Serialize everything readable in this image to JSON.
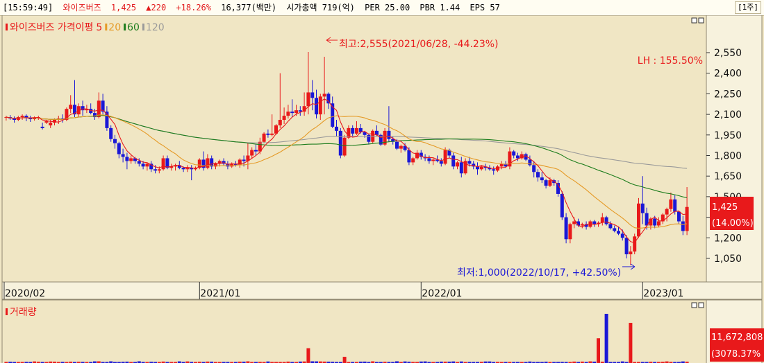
{
  "header": {
    "time": "[15:59:49]",
    "name": "와이즈버즈",
    "price": "1,425",
    "change": "▲220",
    "change_pct": "+18.26%",
    "volume_info": "16,377(백만)",
    "market_cap": "시가총액 719(억)",
    "per": "PER 25.00",
    "pbr": "PBR 1.44",
    "eps": "EPS 57",
    "period_button": "[1주]"
  },
  "colors": {
    "up": "#e8191b",
    "down": "#1a17d6",
    "ma5": "#e8191b",
    "ma20": "#e59a26",
    "ma60": "#1d7d1d",
    "ma120": "#9a9a9a",
    "background": "#f0e6c4"
  },
  "price_panel": {
    "legend_title": "와이즈버즈 가격이평",
    "legend_ma": [
      "5",
      "20",
      "60",
      "120"
    ],
    "high_note": "최고:2,555(2021/06/28, -44.23%)",
    "low_note": "최저:1,000(2022/10/17, +42.50%)",
    "lh_label": "LH : 155.50%",
    "current_price": "1,425",
    "current_pct": "(14.00%)"
  },
  "volume_panel": {
    "legend": "거래량",
    "current_volume": "11,672,808",
    "current_pct": "(3078.37%"
  },
  "chart_data": [
    {
      "type": "candlestick",
      "title": "와이즈버즈 가격이평",
      "period": "weekly",
      "y_ticks": [
        1050,
        1200,
        1350,
        1500,
        1650,
        1800,
        1950,
        2100,
        2250,
        2400,
        2550
      ],
      "y_tick_labels": [
        "1,050",
        "1,200",
        "1,350",
        "1,500",
        "1,650",
        "1,800",
        "1,950",
        "2,100",
        "2,250",
        "2,400",
        "2,550"
      ],
      "ylim": [
        912,
        2680
      ],
      "x_labels": [
        {
          "label": "2020/02",
          "index": 0
        },
        {
          "label": "2021/01",
          "index": 48
        },
        {
          "label": "2022/01",
          "index": 103
        },
        {
          "label": "2023/01",
          "index": 158
        }
      ],
      "candles": [
        [
          2075,
          2090,
          2055,
          2080
        ],
        [
          2080,
          2095,
          2060,
          2070
        ],
        [
          2070,
          2085,
          2040,
          2060
        ],
        [
          2060,
          2090,
          2050,
          2080
        ],
        [
          2080,
          2100,
          2060,
          2090
        ],
        [
          2090,
          2100,
          2050,
          2075
        ],
        [
          2075,
          2090,
          2045,
          2065
        ],
        [
          2065,
          2085,
          2055,
          2075
        ],
        [
          2075,
          2090,
          2060,
          2080
        ],
        [
          2010,
          2040,
          1990,
          2000
        ],
        [
          2040,
          2060,
          2030,
          2050
        ],
        [
          2020,
          2060,
          2000,
          2040
        ],
        [
          2040,
          2070,
          2020,
          2060
        ],
        [
          2060,
          2090,
          2030,
          2070
        ],
        [
          2070,
          2100,
          2040,
          2060
        ],
        [
          2060,
          2150,
          2050,
          2140
        ],
        [
          2140,
          2240,
          2110,
          2170
        ],
        [
          2170,
          2350,
          2080,
          2100
        ],
        [
          2100,
          2180,
          2080,
          2160
        ],
        [
          2160,
          2200,
          2090,
          2130
        ],
        [
          2130,
          2170,
          2110,
          2140
        ],
        [
          2140,
          2180,
          2100,
          2110
        ],
        [
          2110,
          2140,
          2060,
          2080
        ],
        [
          2080,
          2260,
          2070,
          2200
        ],
        [
          2200,
          2250,
          2100,
          2120
        ],
        [
          2120,
          2160,
          1980,
          2000
        ],
        [
          2000,
          2020,
          1900,
          1920
        ],
        [
          1920,
          1950,
          1850,
          1890
        ],
        [
          1890,
          1900,
          1780,
          1810
        ],
        [
          1810,
          1850,
          1750,
          1790
        ],
        [
          1790,
          1820,
          1700,
          1760
        ],
        [
          1760,
          1800,
          1740,
          1780
        ],
        [
          1780,
          1790,
          1740,
          1760
        ],
        [
          1760,
          1780,
          1720,
          1740
        ],
        [
          1740,
          1760,
          1700,
          1720
        ],
        [
          1720,
          1750,
          1690,
          1740
        ],
        [
          1740,
          1760,
          1680,
          1700
        ],
        [
          1700,
          1730,
          1670,
          1690
        ],
        [
          1690,
          1720,
          1670,
          1700
        ],
        [
          1700,
          1800,
          1690,
          1780
        ],
        [
          1780,
          1800,
          1700,
          1710
        ],
        [
          1710,
          1740,
          1690,
          1720
        ],
        [
          1720,
          1740,
          1690,
          1730
        ],
        [
          1730,
          1760,
          1700,
          1710
        ],
        [
          1710,
          1720,
          1680,
          1700
        ],
        [
          1700,
          1730,
          1680,
          1710
        ],
        [
          1710,
          1730,
          1620,
          1700
        ],
        [
          1700,
          1720,
          1690,
          1710
        ],
        [
          1710,
          1780,
          1700,
          1770
        ],
        [
          1770,
          1830,
          1690,
          1710
        ],
        [
          1710,
          1810,
          1700,
          1780
        ],
        [
          1780,
          1800,
          1700,
          1720
        ],
        [
          1720,
          1750,
          1700,
          1740
        ],
        [
          1740,
          1770,
          1720,
          1760
        ],
        [
          1760,
          1780,
          1730,
          1740
        ],
        [
          1740,
          1760,
          1700,
          1720
        ],
        [
          1720,
          1750,
          1710,
          1740
        ],
        [
          1740,
          1760,
          1720,
          1730
        ],
        [
          1730,
          1780,
          1710,
          1770
        ],
        [
          1770,
          1800,
          1720,
          1760
        ],
        [
          1760,
          1890,
          1700,
          1800
        ],
        [
          1800,
          1860,
          1780,
          1840
        ],
        [
          1840,
          1880,
          1800,
          1830
        ],
        [
          1830,
          1930,
          1810,
          1900
        ],
        [
          1900,
          1970,
          1890,
          1960
        ],
        [
          1960,
          1990,
          1930,
          1950
        ],
        [
          1950,
          2100,
          1940,
          1960
        ],
        [
          1960,
          2030,
          1950,
          2020
        ],
        [
          2020,
          2400,
          2000,
          2060
        ],
        [
          2060,
          2150,
          2030,
          2090
        ],
        [
          2090,
          2170,
          2070,
          2120
        ],
        [
          2120,
          2210,
          2080,
          2110
        ],
        [
          2110,
          2170,
          2090,
          2130
        ],
        [
          2130,
          2160,
          2090,
          2120
        ],
        [
          2120,
          2260,
          2090,
          2160
        ],
        [
          2160,
          2555,
          2100,
          2260
        ],
        [
          2260,
          2350,
          2130,
          2220
        ],
        [
          2220,
          2280,
          2070,
          2100
        ],
        [
          2100,
          2250,
          2060,
          2230
        ],
        [
          2230,
          2520,
          2100,
          2250
        ],
        [
          2250,
          2260,
          2140,
          2180
        ],
        [
          2180,
          2230,
          2000,
          2010
        ],
        [
          2010,
          2060,
          1940,
          1980
        ],
        [
          1980,
          2000,
          1780,
          1800
        ],
        [
          1800,
          1950,
          1790,
          1930
        ],
        [
          1930,
          2020,
          1920,
          2000
        ],
        [
          2000,
          2020,
          1940,
          1960
        ],
        [
          1960,
          2050,
          1950,
          2000
        ],
        [
          2000,
          2030,
          1960,
          1970
        ],
        [
          1970,
          1980,
          1930,
          1950
        ],
        [
          1950,
          1960,
          1880,
          1900
        ],
        [
          1900,
          1990,
          1890,
          1980
        ],
        [
          1980,
          2020,
          1940,
          1950
        ],
        [
          1950,
          1960,
          1870,
          1880
        ],
        [
          1880,
          2000,
          1870,
          1980
        ],
        [
          1980,
          2160,
          1900,
          1920
        ],
        [
          1920,
          1940,
          1880,
          1900
        ],
        [
          1900,
          1920,
          1840,
          1850
        ],
        [
          1850,
          1880,
          1820,
          1870
        ],
        [
          1870,
          1890,
          1830,
          1840
        ],
        [
          1840,
          1860,
          1730,
          1750
        ],
        [
          1750,
          1790,
          1730,
          1780
        ],
        [
          1780,
          1840,
          1770,
          1820
        ],
        [
          1820,
          1840,
          1770,
          1790
        ],
        [
          1790,
          1810,
          1760,
          1780
        ],
        [
          1780,
          1800,
          1740,
          1760
        ],
        [
          1760,
          1780,
          1730,
          1770
        ],
        [
          1770,
          1800,
          1750,
          1760
        ],
        [
          1760,
          1780,
          1720,
          1740
        ],
        [
          1740,
          1860,
          1730,
          1840
        ],
        [
          1840,
          1850,
          1780,
          1800
        ],
        [
          1800,
          1820,
          1700,
          1720
        ],
        [
          1720,
          1760,
          1700,
          1750
        ],
        [
          1750,
          1790,
          1640,
          1670
        ],
        [
          1670,
          1780,
          1660,
          1760
        ],
        [
          1760,
          1790,
          1720,
          1740
        ],
        [
          1740,
          1760,
          1700,
          1720
        ],
        [
          1720,
          1750,
          1660,
          1700
        ],
        [
          1700,
          1730,
          1690,
          1720
        ],
        [
          1720,
          1740,
          1690,
          1710
        ],
        [
          1710,
          1730,
          1690,
          1700
        ],
        [
          1700,
          1720,
          1660,
          1690
        ],
        [
          1690,
          1730,
          1680,
          1720
        ],
        [
          1720,
          1760,
          1700,
          1740
        ],
        [
          1740,
          1760,
          1710,
          1720
        ],
        [
          1720,
          1860,
          1700,
          1830
        ],
        [
          1830,
          1840,
          1780,
          1800
        ],
        [
          1800,
          1820,
          1760,
          1780
        ],
        [
          1780,
          1830,
          1770,
          1810
        ],
        [
          1810,
          1820,
          1760,
          1770
        ],
        [
          1770,
          1800,
          1720,
          1730
        ],
        [
          1730,
          1760,
          1640,
          1680
        ],
        [
          1680,
          1700,
          1610,
          1640
        ],
        [
          1640,
          1680,
          1600,
          1620
        ],
        [
          1620,
          1630,
          1560,
          1580
        ],
        [
          1580,
          1640,
          1570,
          1620
        ],
        [
          1620,
          1630,
          1580,
          1600
        ],
        [
          1600,
          1620,
          1500,
          1520
        ],
        [
          1520,
          1540,
          1330,
          1350
        ],
        [
          1350,
          1380,
          1160,
          1190
        ],
        [
          1190,
          1310,
          1160,
          1300
        ],
        [
          1300,
          1350,
          1270,
          1320
        ],
        [
          1320,
          1340,
          1280,
          1290
        ],
        [
          1290,
          1310,
          1270,
          1300
        ],
        [
          1300,
          1320,
          1260,
          1280
        ],
        [
          1280,
          1330,
          1270,
          1320
        ],
        [
          1320,
          1330,
          1280,
          1300
        ],
        [
          1300,
          1320,
          1280,
          1310
        ],
        [
          1310,
          1380,
          1290,
          1350
        ],
        [
          1350,
          1360,
          1290,
          1300
        ],
        [
          1300,
          1320,
          1260,
          1270
        ],
        [
          1270,
          1290,
          1240,
          1250
        ],
        [
          1250,
          1280,
          1220,
          1230
        ],
        [
          1230,
          1260,
          1180,
          1200
        ],
        [
          1200,
          1220,
          1050,
          1080
        ],
        [
          1080,
          1140,
          1000,
          1100
        ],
        [
          1100,
          1230,
          1080,
          1210
        ],
        [
          1210,
          1490,
          1200,
          1450
        ],
        [
          1450,
          1650,
          1300,
          1380
        ],
        [
          1380,
          1420,
          1260,
          1290
        ],
        [
          1290,
          1350,
          1260,
          1340
        ],
        [
          1340,
          1360,
          1270,
          1290
        ],
        [
          1290,
          1350,
          1280,
          1320
        ],
        [
          1320,
          1380,
          1300,
          1370
        ],
        [
          1370,
          1420,
          1320,
          1410
        ],
        [
          1410,
          1530,
          1390,
          1480
        ],
        [
          1480,
          1510,
          1370,
          1390
        ],
        [
          1390,
          1400,
          1300,
          1320
        ],
        [
          1320,
          1360,
          1220,
          1250
        ],
        [
          1250,
          1570,
          1220,
          1425
        ]
      ]
    },
    {
      "type": "bar",
      "title": "거래량",
      "current_volume": 11672808,
      "visible_tick": "11,672,808",
      "spikes": [
        {
          "index": 75,
          "value": 4300000
        },
        {
          "index": 84,
          "value": 1800000
        },
        {
          "index": 147,
          "value": 7200000
        },
        {
          "index": 149,
          "value": 14300000
        },
        {
          "index": 155,
          "value": 11672808
        }
      ],
      "base_volume_range": [
        150000,
        500000
      ]
    }
  ]
}
